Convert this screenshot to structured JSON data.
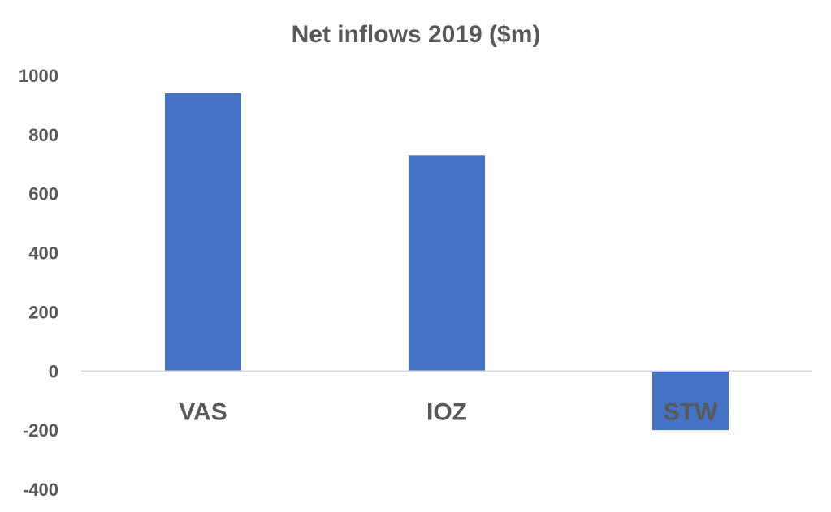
{
  "chart_data": {
    "type": "bar",
    "title": "Net inflows 2019 ($m)",
    "categories": [
      "VAS",
      "IOZ",
      "STW"
    ],
    "values": [
      940,
      730,
      -200
    ],
    "ylim": [
      -400,
      1000
    ],
    "yticks": [
      1000,
      800,
      600,
      400,
      200,
      0,
      -200,
      -400
    ],
    "grid": false,
    "legend": "none",
    "bar_color": "#4472C4",
    "axis_color": "#D9D9D9",
    "text_color": "#595959"
  }
}
